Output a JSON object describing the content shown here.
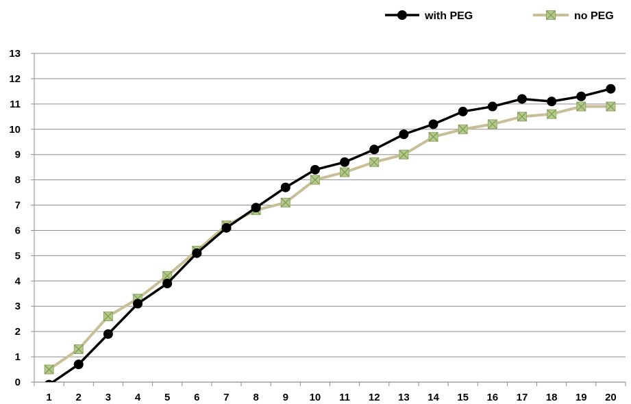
{
  "chart_data": {
    "type": "line",
    "title": "",
    "xlabel": "",
    "ylabel": "",
    "categories": [
      "1",
      "2",
      "3",
      "4",
      "5",
      "6",
      "7",
      "8",
      "9",
      "10",
      "11",
      "12",
      "13",
      "14",
      "15",
      "16",
      "17",
      "18",
      "19",
      "20"
    ],
    "ylim": [
      0,
      13
    ],
    "yticks": [
      "0",
      "1",
      "2",
      "3",
      "4",
      "5",
      "6",
      "7",
      "8",
      "9",
      "10",
      "11",
      "12",
      "13"
    ],
    "grid": "horizontal",
    "legend_position": "top-right",
    "series": [
      {
        "name": "with PEG",
        "color": "#000000",
        "marker": "circle",
        "values": [
          -0.1,
          0.7,
          1.9,
          3.1,
          3.9,
          5.1,
          6.1,
          6.9,
          7.7,
          8.4,
          8.7,
          9.2,
          9.8,
          10.2,
          10.7,
          10.9,
          11.2,
          11.1,
          11.3,
          11.6
        ]
      },
      {
        "name": "no PEG",
        "color": "#c8bf96",
        "marker": "square-x",
        "marker_fill": "#b5c98a",
        "values": [
          0.5,
          1.3,
          2.6,
          3.3,
          4.2,
          5.2,
          6.2,
          6.8,
          7.1,
          8.0,
          8.3,
          8.7,
          9.0,
          9.7,
          10.0,
          10.2,
          10.5,
          10.6,
          10.9,
          10.9
        ]
      }
    ]
  }
}
